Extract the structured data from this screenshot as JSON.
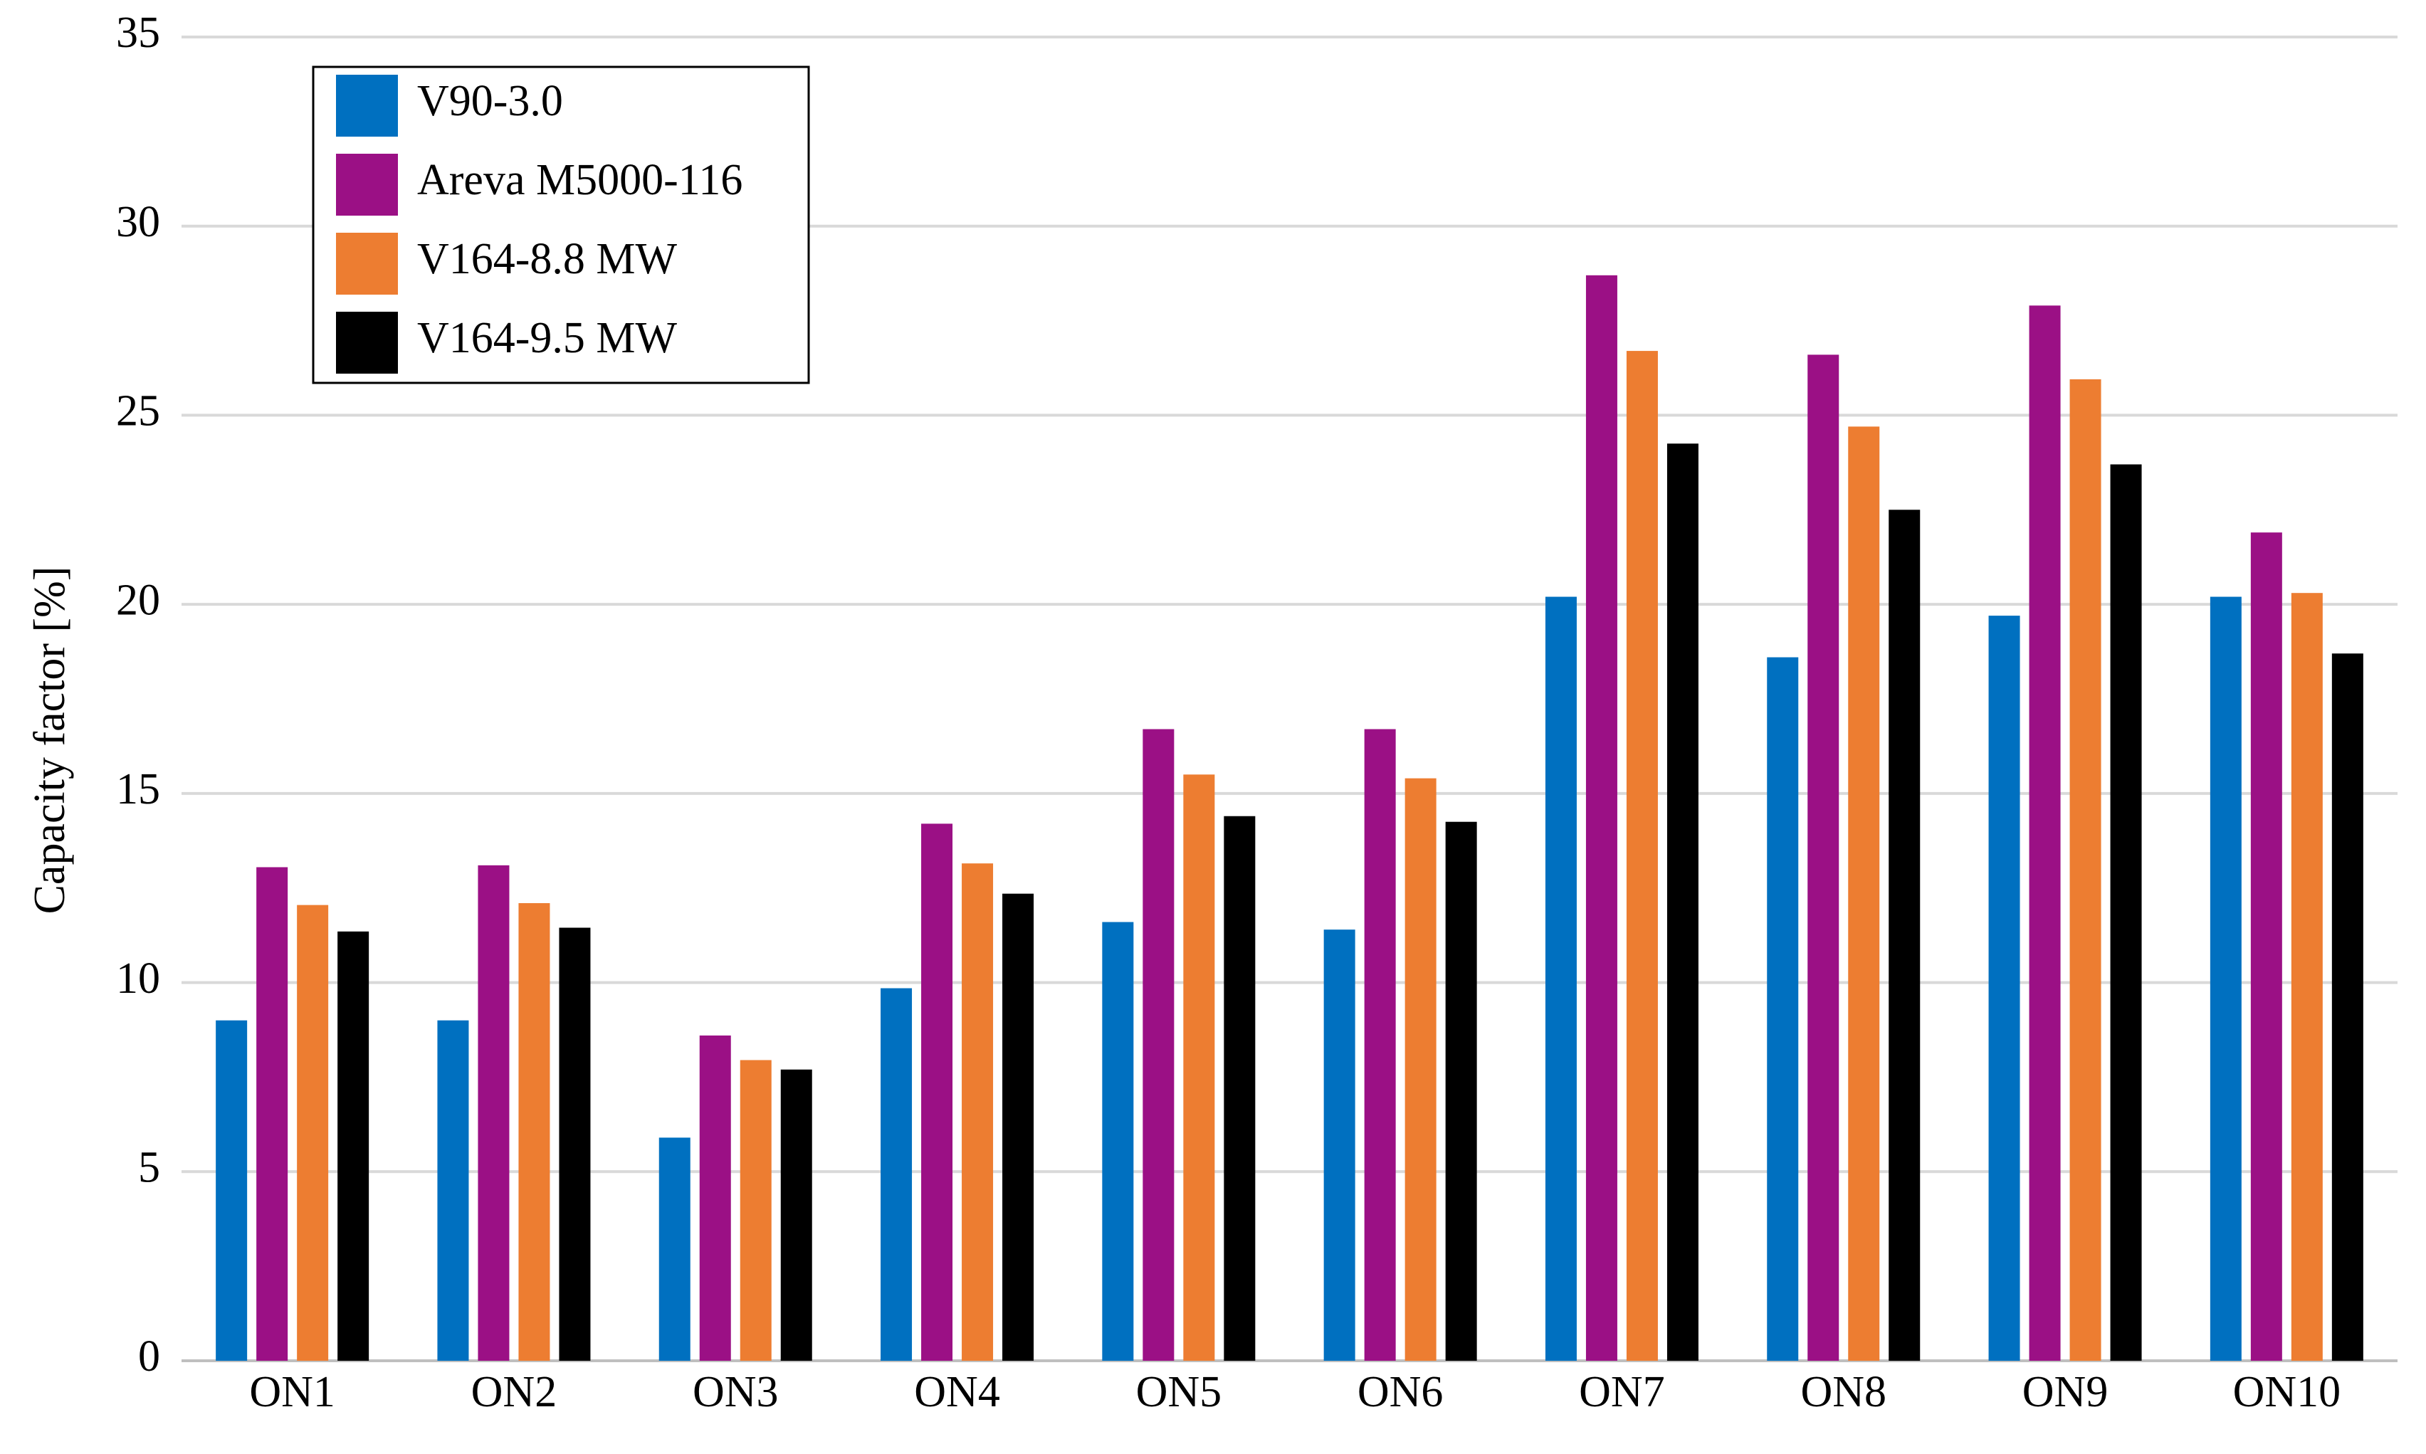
{
  "chart_data": {
    "type": "bar",
    "y_label": "Capacity factor [%]",
    "categories": [
      "ON1",
      "ON2",
      "ON3",
      "ON4",
      "ON5",
      "ON6",
      "ON7",
      "ON8",
      "ON9",
      "ON10"
    ],
    "series": [
      {
        "name": "V90-3.0",
        "color": "#0070c0",
        "values": [
          9.0,
          9.0,
          5.9,
          9.85,
          11.6,
          11.4,
          20.2,
          18.6,
          19.7,
          20.2
        ]
      },
      {
        "name": "Areva M5000-116",
        "color": "#9b1085",
        "values": [
          13.05,
          13.1,
          8.6,
          14.2,
          16.7,
          16.7,
          28.7,
          26.6,
          27.9,
          21.9
        ]
      },
      {
        "name": "V164-8.8 MW",
        "color": "#ed7d31",
        "values": [
          12.05,
          12.1,
          7.95,
          13.15,
          15.5,
          15.4,
          26.7,
          24.7,
          25.95,
          20.3
        ]
      },
      {
        "name": "V164-9.5 MW",
        "color": "#000000",
        "values": [
          11.35,
          11.45,
          7.7,
          12.35,
          14.4,
          14.25,
          24.25,
          22.5,
          23.7,
          18.7
        ]
      }
    ],
    "ylim": [
      0,
      35
    ],
    "yticks": [
      0,
      5,
      10,
      15,
      20,
      25,
      30,
      35
    ],
    "grid": true,
    "legend": "upper left"
  }
}
